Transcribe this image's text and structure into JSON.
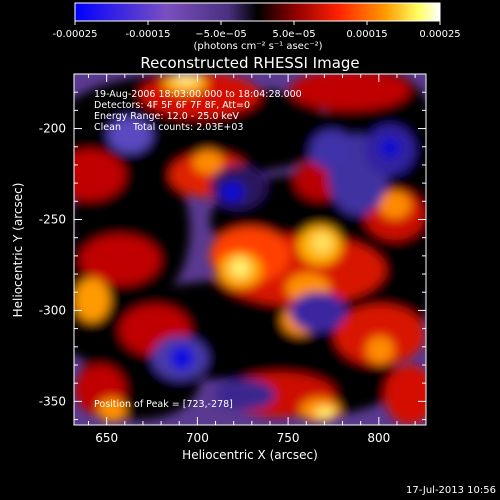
{
  "chart_data": {
    "type": "heatmap",
    "title": "Reconstructed RHESSI Image",
    "xlabel": "Heliocentric X (arcsec)",
    "ylabel": "Heliocentric Y (arcsec)",
    "xlim": [
      632,
      826
    ],
    "ylim": [
      -363,
      -170
    ],
    "x_ticks": [
      650,
      700,
      750,
      800
    ],
    "y_ticks": [
      -200,
      -250,
      -300,
      -350
    ],
    "colorbar": {
      "range": [
        -0.00025,
        0.00025
      ],
      "ticks": [
        "-0.00025",
        "-0.00015",
        "−5.0e−05",
        "5.0e−05",
        "0.00015",
        "0.00025"
      ],
      "unit_label": "(photons cm⁻² s⁻¹ asec⁻²)"
    },
    "annotations": [
      "19-Aug-2006 18:03:00.000 to 18:04:28.000",
      "Detectors: 4F 5F 6F 7F 8F, Att=0",
      "Energy Range: 12.0 - 25.0 keV",
      "Clean    Total counts: 2.03E+03"
    ],
    "peak_label": "Position of Peak = [723,-278]",
    "peak_x": 723,
    "peak_y": -278,
    "colors": {
      "background": "#000000",
      "text": "#ffffff",
      "colormap": [
        "#0000ff",
        "#7a4fc0",
        "#5a3a90",
        "#000000",
        "#8a0000",
        "#ff2000",
        "#ff9a00",
        "#ffff60",
        "#ffffff"
      ]
    }
  },
  "footer": {
    "timestamp": "17-Jul-2013 10:56"
  }
}
